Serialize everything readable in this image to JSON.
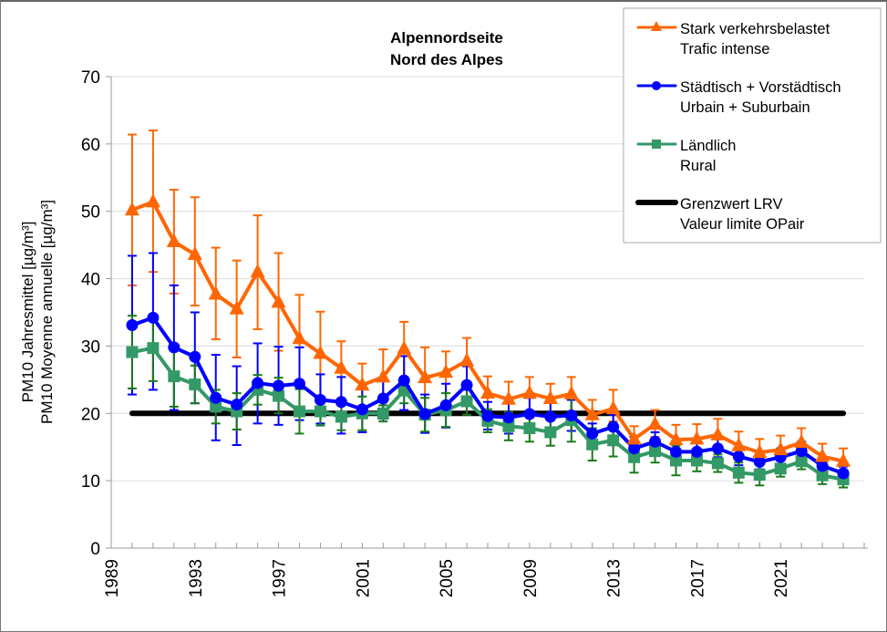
{
  "chart_data": {
    "type": "line",
    "title": [
      "Alpennordseite",
      "Nord des Alpes"
    ],
    "xlabel": "",
    "ylabel": [
      "PM10 Jahresmittel [µg/m³]",
      "PM10 Moyenne annuelle [µg/m³]"
    ],
    "ylim": [
      0,
      70
    ],
    "yticks": [
      0,
      10,
      20,
      30,
      40,
      50,
      60,
      70
    ],
    "xlim": [
      1989,
      2025
    ],
    "xticks": [
      1989,
      1993,
      1997,
      2001,
      2005,
      2009,
      2013,
      2017,
      2021
    ],
    "grid": true,
    "legend_position": "top-right",
    "x": [
      1990,
      1991,
      1992,
      1993,
      1994,
      1995,
      1996,
      1997,
      1998,
      1999,
      2000,
      2001,
      2002,
      2003,
      2004,
      2005,
      2006,
      2007,
      2008,
      2009,
      2010,
      2011,
      2012,
      2013,
      2014,
      2015,
      2016,
      2017,
      2018,
      2019,
      2020,
      2021,
      2022,
      2023,
      2024
    ],
    "series": [
      {
        "name": "Stark verkehrsbelastet / Trafic intense",
        "legend": [
          "Stark verkehrsbelastet",
          "Trafic intense"
        ],
        "color": "#ff6600",
        "marker": "triangle",
        "values": [
          50.2,
          51.4,
          45.5,
          43.6,
          37.7,
          35.5,
          41.0,
          36.5,
          31.1,
          28.9,
          26.7,
          24.2,
          25.4,
          29.6,
          25.3,
          26.1,
          27.8,
          23.0,
          22.1,
          23.0,
          22.2,
          22.9,
          19.8,
          20.7,
          16.2,
          18.4,
          16.1,
          16.2,
          16.8,
          15.2,
          14.2,
          14.6,
          15.7,
          13.6,
          12.9
        ],
        "err_low": [
          39.0,
          41.0,
          37.8,
          36.0,
          31.0,
          28.3,
          32.5,
          29.3,
          25.0,
          22.3,
          21.6,
          19.8,
          20.3,
          25.0,
          20.5,
          20.0,
          23.5,
          19.0,
          19.5,
          19.5,
          19.2,
          19.4,
          17.5,
          18.8,
          14.8,
          16.5,
          14.5,
          14.5,
          14.8,
          13.3,
          12.9,
          13.1,
          14.0,
          12.0,
          11.5
        ],
        "err_high": [
          61.4,
          62.0,
          53.2,
          52.1,
          44.6,
          42.7,
          49.4,
          43.8,
          37.6,
          35.1,
          30.7,
          27.4,
          29.5,
          33.6,
          29.8,
          29.2,
          31.2,
          25.5,
          24.7,
          25.4,
          24.4,
          25.4,
          22.0,
          23.5,
          18.1,
          20.5,
          18.3,
          18.4,
          19.2,
          17.3,
          16.2,
          16.7,
          17.8,
          15.5,
          14.8
        ]
      },
      {
        "name": "Städtisch + Vorstädtisch / Urbain + Suburbain",
        "legend": [
          "Städtisch + Vorstädtisch",
          "Urbain + Suburbain"
        ],
        "color": "#0000ff",
        "marker": "circle",
        "values": [
          33.1,
          34.2,
          29.8,
          28.4,
          22.3,
          21.3,
          24.5,
          24.1,
          24.4,
          22.0,
          21.7,
          20.6,
          22.2,
          24.9,
          19.9,
          21.2,
          24.2,
          19.6,
          19.4,
          19.9,
          19.5,
          19.7,
          17.0,
          18.0,
          14.8,
          15.8,
          14.3,
          14.3,
          14.8,
          13.6,
          12.8,
          13.5,
          14.4,
          12.2,
          11.1
        ],
        "err_low": [
          22.8,
          23.5,
          20.5,
          21.5,
          16.0,
          15.3,
          18.5,
          18.3,
          19.0,
          18.5,
          17.0,
          17.2,
          19.2,
          20.5,
          17.1,
          17.9,
          21.5,
          17.6,
          17.0,
          17.5,
          17.2,
          17.4,
          15.5,
          16.2,
          13.0,
          14.5,
          13.0,
          13.1,
          13.5,
          12.3,
          11.7,
          12.2,
          13.1,
          11.2,
          10.2
        ],
        "err_high": [
          43.4,
          43.8,
          39.0,
          35.0,
          28.7,
          27.0,
          30.4,
          29.9,
          29.8,
          25.8,
          25.4,
          24.0,
          25.2,
          28.5,
          22.8,
          24.4,
          27.0,
          21.7,
          21.8,
          22.3,
          21.8,
          22.0,
          18.5,
          19.8,
          16.5,
          17.2,
          15.6,
          15.6,
          16.2,
          14.9,
          14.0,
          14.8,
          15.8,
          13.2,
          12.1
        ]
      },
      {
        "name": "Ländlich / Rural",
        "legend": [
          "Ländlich",
          "Rural"
        ],
        "color": "#339966",
        "marker": "square",
        "values": [
          29.1,
          29.7,
          25.5,
          24.3,
          21.0,
          20.3,
          23.5,
          22.6,
          20.3,
          20.3,
          19.5,
          20.0,
          20.0,
          23.4,
          19.8,
          20.5,
          21.8,
          18.9,
          18.1,
          17.8,
          17.2,
          19.0,
          15.4,
          16.0,
          13.5,
          14.4,
          13.0,
          13.0,
          12.6,
          11.2,
          10.9,
          11.8,
          12.9,
          10.8,
          10.2
        ],
        "err_low": [
          23.7,
          24.8,
          21.0,
          21.5,
          18.5,
          17.6,
          21.3,
          20.0,
          17.0,
          18.2,
          17.5,
          17.5,
          18.8,
          21.5,
          17.3,
          18.0,
          19.8,
          17.2,
          16.0,
          15.8,
          15.2,
          15.8,
          13.0,
          13.6,
          11.2,
          12.7,
          10.8,
          11.4,
          11.3,
          9.7,
          9.3,
          10.6,
          11.7,
          9.5,
          9.0
        ],
        "err_high": [
          34.5,
          34.6,
          30.0,
          27.1,
          23.5,
          23.0,
          25.7,
          25.3,
          23.6,
          22.4,
          21.5,
          22.5,
          21.2,
          25.3,
          22.3,
          23.0,
          23.8,
          20.6,
          20.2,
          19.8,
          19.2,
          22.2,
          17.8,
          18.5,
          15.8,
          16.1,
          15.2,
          14.6,
          13.9,
          12.7,
          12.5,
          13.0,
          14.1,
          12.1,
          11.4
        ]
      },
      {
        "name": "Grenzwert LRV / Valeur limite OPair",
        "legend": [
          "Grenzwert LRV",
          "Valeur limite OPair"
        ],
        "color": "#000000",
        "marker": "none",
        "x_range": [
          1990,
          2024
        ],
        "value": 20
      }
    ]
  }
}
